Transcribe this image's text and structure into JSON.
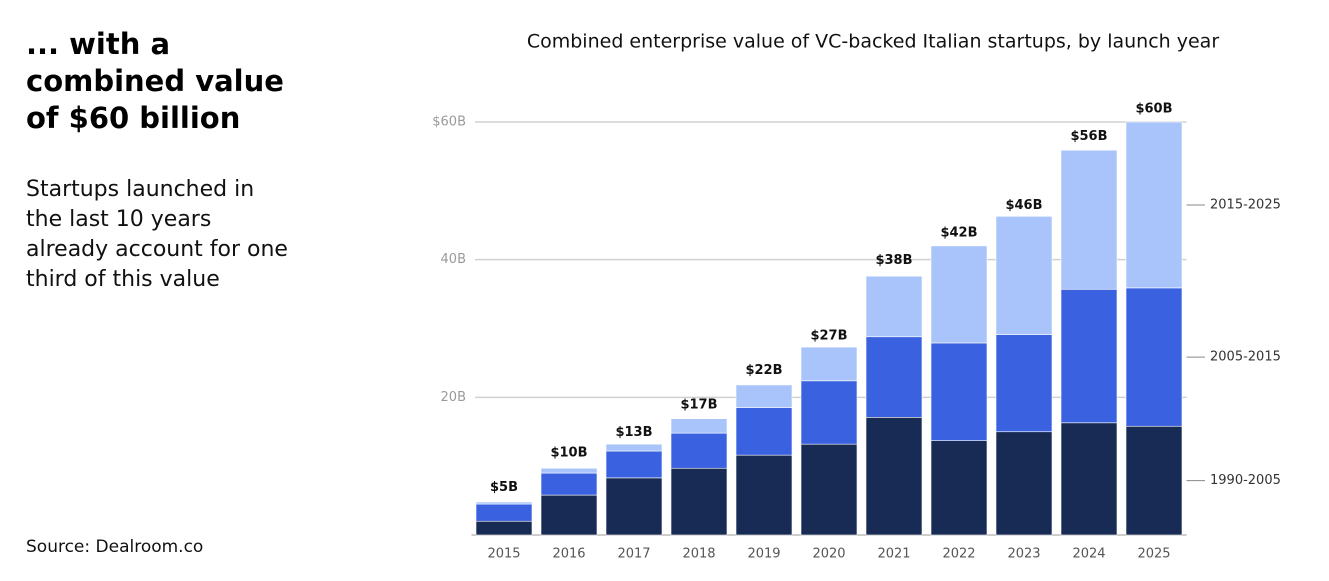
{
  "sidebar": {
    "heading_lines": [
      "... with a",
      "combined value",
      "of $60 billion"
    ],
    "body_lines": [
      "Startups launched in",
      "the last 10 years",
      "already account for one",
      "third of this value"
    ],
    "source": "Source:  Dealroom.co"
  },
  "chart_data": {
    "type": "stacked_bar",
    "title": "Combined enterprise value of VC-backed Italian startups, by launch year",
    "categories": [
      "2015",
      "2016",
      "2017",
      "2018",
      "2019",
      "2020",
      "2021",
      "2022",
      "2023",
      "2024",
      "2025"
    ],
    "series": [
      {
        "name": "1990-2005",
        "color": "#172b54",
        "values": [
          2.0,
          5.8,
          8.3,
          9.7,
          11.6,
          13.2,
          17.1,
          13.7,
          15.0,
          16.3,
          15.8
        ]
      },
      {
        "name": "2005-2015",
        "color": "#3a62e0",
        "values": [
          2.5,
          3.2,
          3.9,
          5.1,
          6.9,
          9.2,
          11.7,
          14.2,
          14.1,
          19.4,
          20.1
        ]
      },
      {
        "name": "2015-2025",
        "color": "#a9c4fb",
        "values": [
          0.3,
          0.7,
          1.0,
          2.1,
          3.3,
          4.9,
          8.8,
          14.1,
          17.2,
          20.2,
          24.1
        ]
      }
    ],
    "totals": {
      "values": [
        5,
        10,
        13,
        17,
        22,
        27,
        38,
        42,
        46,
        56,
        60
      ],
      "value_labels": [
        "$5B",
        "$10B",
        "$13B",
        "$17B",
        "$22B",
        "$27B",
        "$38B",
        "$42B",
        "$46B",
        "$56B",
        "$60B"
      ]
    },
    "ylim": [
      0,
      60
    ],
    "yticks": [
      {
        "value": 20,
        "label": "20B"
      },
      {
        "value": 40,
        "label": "40B"
      },
      {
        "value": 60,
        "label": "$60B"
      }
    ],
    "grid": true
  }
}
